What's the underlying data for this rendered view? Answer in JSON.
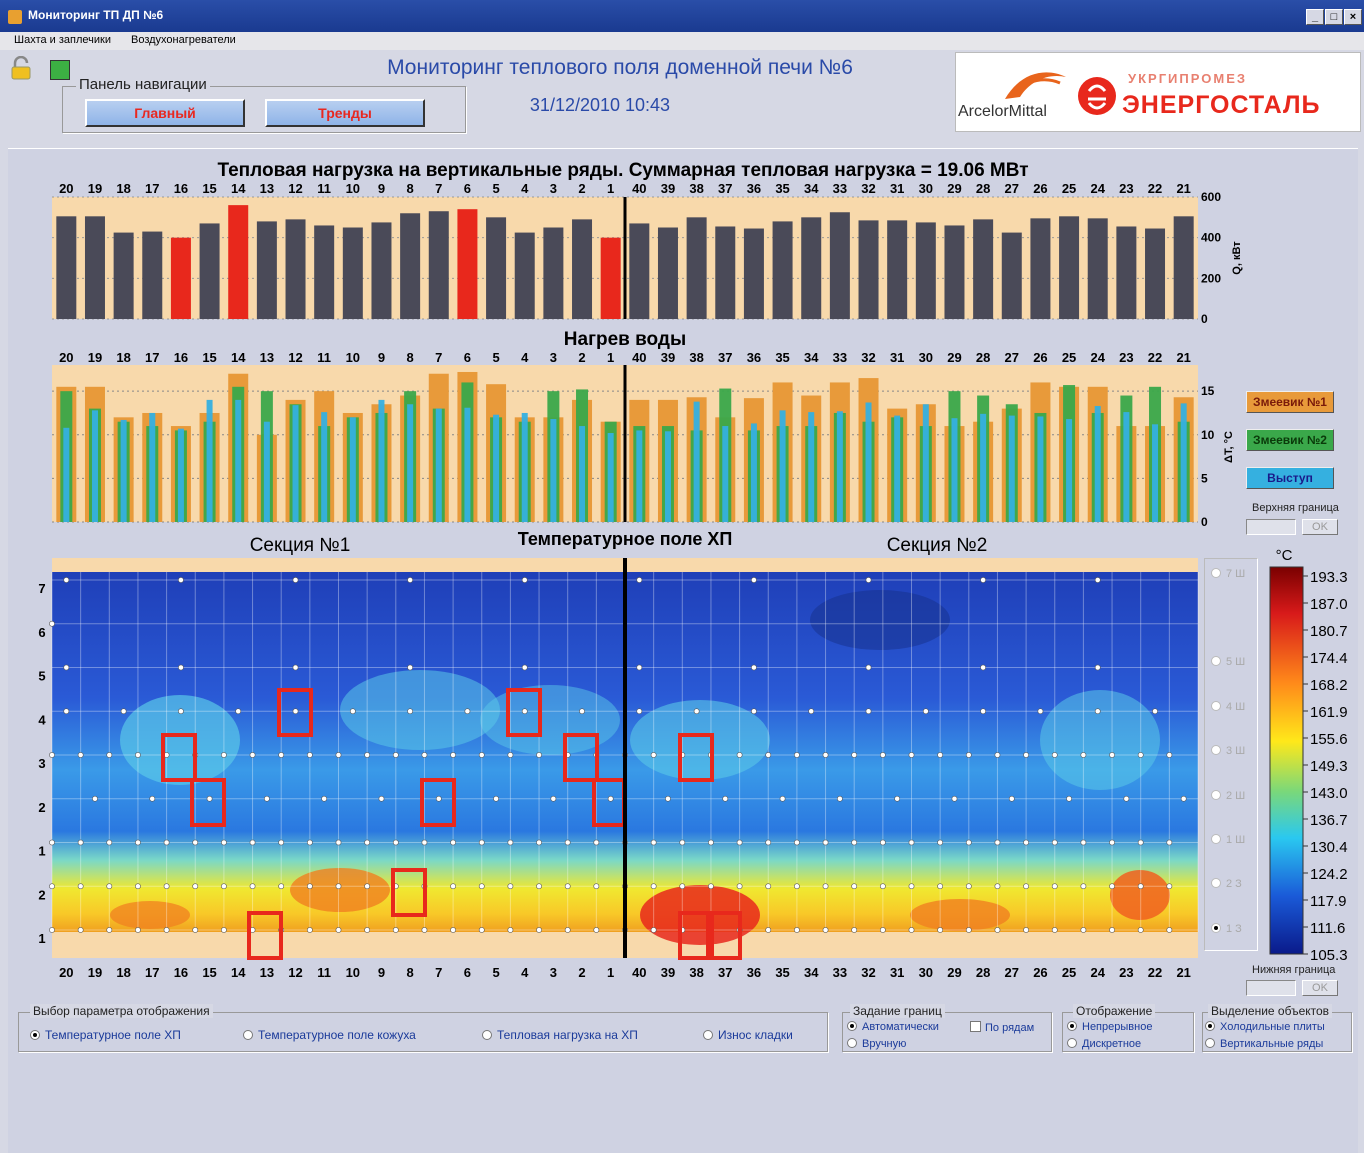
{
  "window": {
    "title": "Мониторинг ТП ДП №6",
    "buttons": [
      "_",
      "□",
      "×"
    ]
  },
  "menu": [
    "Шахта и заплечики",
    "Воздухонагреватели"
  ],
  "nav": {
    "label": "Панель навигации",
    "main_button": "Главный",
    "trends_button": "Тренды"
  },
  "header": {
    "title": "Мониторинг теплового поля доменной печи №6",
    "datetime": "31/12/2010 10:43",
    "logo_left": "ArcelorMittal",
    "logo_right_top": "УКРГИПРОМЕЗ",
    "logo_right_bottom": "ЭНЕРГОСТАЛЬ"
  },
  "colors": {
    "accent_blue": "#2a4aa8",
    "bar_normal": "#4a4a58",
    "bar_alarm": "#e8281c",
    "plot_bg": "#f8d9ab",
    "coil1": "#e89a3a",
    "coil2": "#3aa84a",
    "ledge": "#35b0e0"
  },
  "columns": {
    "section1": [
      "20",
      "19",
      "18",
      "17",
      "16",
      "15",
      "14",
      "13",
      "12",
      "11",
      "10",
      "9",
      "8",
      "7",
      "6",
      "5",
      "4",
      "3",
      "2",
      "1"
    ],
    "section2": [
      "40",
      "39",
      "38",
      "37",
      "36",
      "35",
      "34",
      "33",
      "32",
      "31",
      "30",
      "29",
      "28",
      "27",
      "26",
      "25",
      "24",
      "23",
      "22",
      "21"
    ]
  },
  "chart_data": [
    {
      "type": "bar",
      "title": "Тепловая нагрузка на вертикальные ряды. Суммарная тепловая нагрузка = 19.06 МВт",
      "ylabel": "Q, кВт",
      "ylim": [
        0,
        600
      ],
      "yticks": [
        "0",
        "200",
        "400",
        "600"
      ],
      "categories": [
        "20",
        "19",
        "18",
        "17",
        "16",
        "15",
        "14",
        "13",
        "12",
        "11",
        "10",
        "9",
        "8",
        "7",
        "6",
        "5",
        "4",
        "3",
        "2",
        "1",
        "40",
        "39",
        "38",
        "37",
        "36",
        "35",
        "34",
        "33",
        "32",
        "31",
        "30",
        "29",
        "28",
        "27",
        "26",
        "25",
        "24",
        "23",
        "22",
        "21"
      ],
      "values": [
        505,
        505,
        425,
        430,
        400,
        470,
        560,
        480,
        490,
        460,
        450,
        475,
        520,
        530,
        540,
        500,
        425,
        450,
        490,
        400,
        470,
        450,
        500,
        455,
        445,
        480,
        500,
        525,
        485,
        485,
        475,
        460,
        490,
        425,
        495,
        505,
        495,
        455,
        445,
        505
      ],
      "alarm": [
        false,
        false,
        false,
        false,
        true,
        false,
        true,
        false,
        false,
        false,
        false,
        false,
        false,
        false,
        true,
        false,
        false,
        false,
        false,
        true,
        false,
        false,
        false,
        false,
        false,
        false,
        false,
        false,
        false,
        false,
        false,
        false,
        false,
        false,
        false,
        false,
        false,
        false,
        false,
        false
      ]
    },
    {
      "type": "bar",
      "title": "Нагрев воды",
      "ylabel": "ΔT, °C",
      "ylim": [
        0,
        18
      ],
      "yticks": [
        "0",
        "5",
        "10",
        "15"
      ],
      "categories": [
        "20",
        "19",
        "18",
        "17",
        "16",
        "15",
        "14",
        "13",
        "12",
        "11",
        "10",
        "9",
        "8",
        "7",
        "6",
        "5",
        "4",
        "3",
        "2",
        "1",
        "40",
        "39",
        "38",
        "37",
        "36",
        "35",
        "34",
        "33",
        "32",
        "31",
        "30",
        "29",
        "28",
        "27",
        "26",
        "25",
        "24",
        "23",
        "22",
        "21"
      ],
      "series": [
        {
          "name": "Змеевик №1",
          "values": [
            15.5,
            15.5,
            12,
            12.5,
            11,
            12.5,
            17,
            10,
            14,
            15,
            12.5,
            13.5,
            14.5,
            17,
            17.2,
            15.8,
            12,
            12,
            14,
            11.5,
            14,
            14,
            14.3,
            12,
            14.2,
            16,
            14.5,
            16,
            16.5,
            13,
            13.5,
            11,
            11.5,
            13,
            16,
            15.5,
            15.5,
            11,
            11,
            14.3
          ]
        },
        {
          "name": "Змеевик №2",
          "values": [
            15,
            13,
            11.5,
            11,
            10.5,
            11.5,
            15.5,
            15,
            13.5,
            11,
            12,
            12.5,
            15,
            13,
            16,
            12,
            11.5,
            15,
            15.2,
            11.5,
            11,
            11,
            10.5,
            15.3,
            10.5,
            11,
            11,
            12.5,
            11.5,
            12,
            11,
            15,
            14.5,
            13.5,
            12.5,
            15.7,
            12.5,
            14.5,
            15.5,
            11.5
          ]
        },
        {
          "name": "Выступ",
          "values": [
            10.8,
            12.8,
            11.7,
            12.5,
            10.7,
            14,
            14,
            11.5,
            13.4,
            12.6,
            12,
            14,
            13.5,
            13,
            13.1,
            12.3,
            12.5,
            11.8,
            11,
            10.2,
            10.5,
            10.4,
            13.8,
            11,
            11.3,
            12.8,
            12.6,
            12.7,
            13.7,
            12.2,
            13.5,
            11.9,
            12.4,
            12.2,
            12.1,
            11.8,
            13.3,
            12.6,
            11.2,
            13.6
          ]
        }
      ]
    },
    {
      "type": "heatmap",
      "title": "Температурное поле ХП",
      "section1_label": "Секция №1",
      "section2_label": "Секция №2",
      "unit": "°C",
      "colorbar_ticks": [
        "193.3",
        "187.0",
        "180.7",
        "174.4",
        "168.2",
        "161.9",
        "155.6",
        "149.3",
        "143.0",
        "136.7",
        "130.4",
        "124.2",
        "117.9",
        "111.6",
        "105.3"
      ],
      "zlim": [
        105.3,
        193.3
      ],
      "row_labels": [
        "7",
        "6",
        "5",
        "4",
        "3",
        "2",
        "1",
        "2",
        "1"
      ]
    }
  ],
  "legend": {
    "coil1": "Змеевик №1",
    "coil2": "Змеевик №2",
    "ledge": "Выступ"
  },
  "bounds": {
    "upper_label": "Верхняя граница",
    "lower_label": "Нижняя граница",
    "ok": "OK"
  },
  "tiers": [
    "7 Ш",
    "5 Ш",
    "4 Ш",
    "3 Ш",
    "2 Ш",
    "1 Ш",
    "2 З",
    "1 З"
  ],
  "display_param": {
    "label": "Выбор параметра отображения",
    "options": [
      "Температурное поле ХП",
      "Температурное поле кожуха",
      "Тепловая нагрузка на ХП",
      "Износ кладки"
    ],
    "selected": 0
  },
  "bounds_setting": {
    "label": "Задание границ",
    "auto": "Автоматически",
    "manual": "Вручную",
    "by_rows": "По рядам"
  },
  "display_mode": {
    "label": "Отображение",
    "continuous": "Непрерывное",
    "discrete": "Дискретное"
  },
  "object_select": {
    "label": "Выделение объектов",
    "cold_plates": "Холодильные плиты",
    "vertical_rows": "Вертикальные ряды"
  }
}
